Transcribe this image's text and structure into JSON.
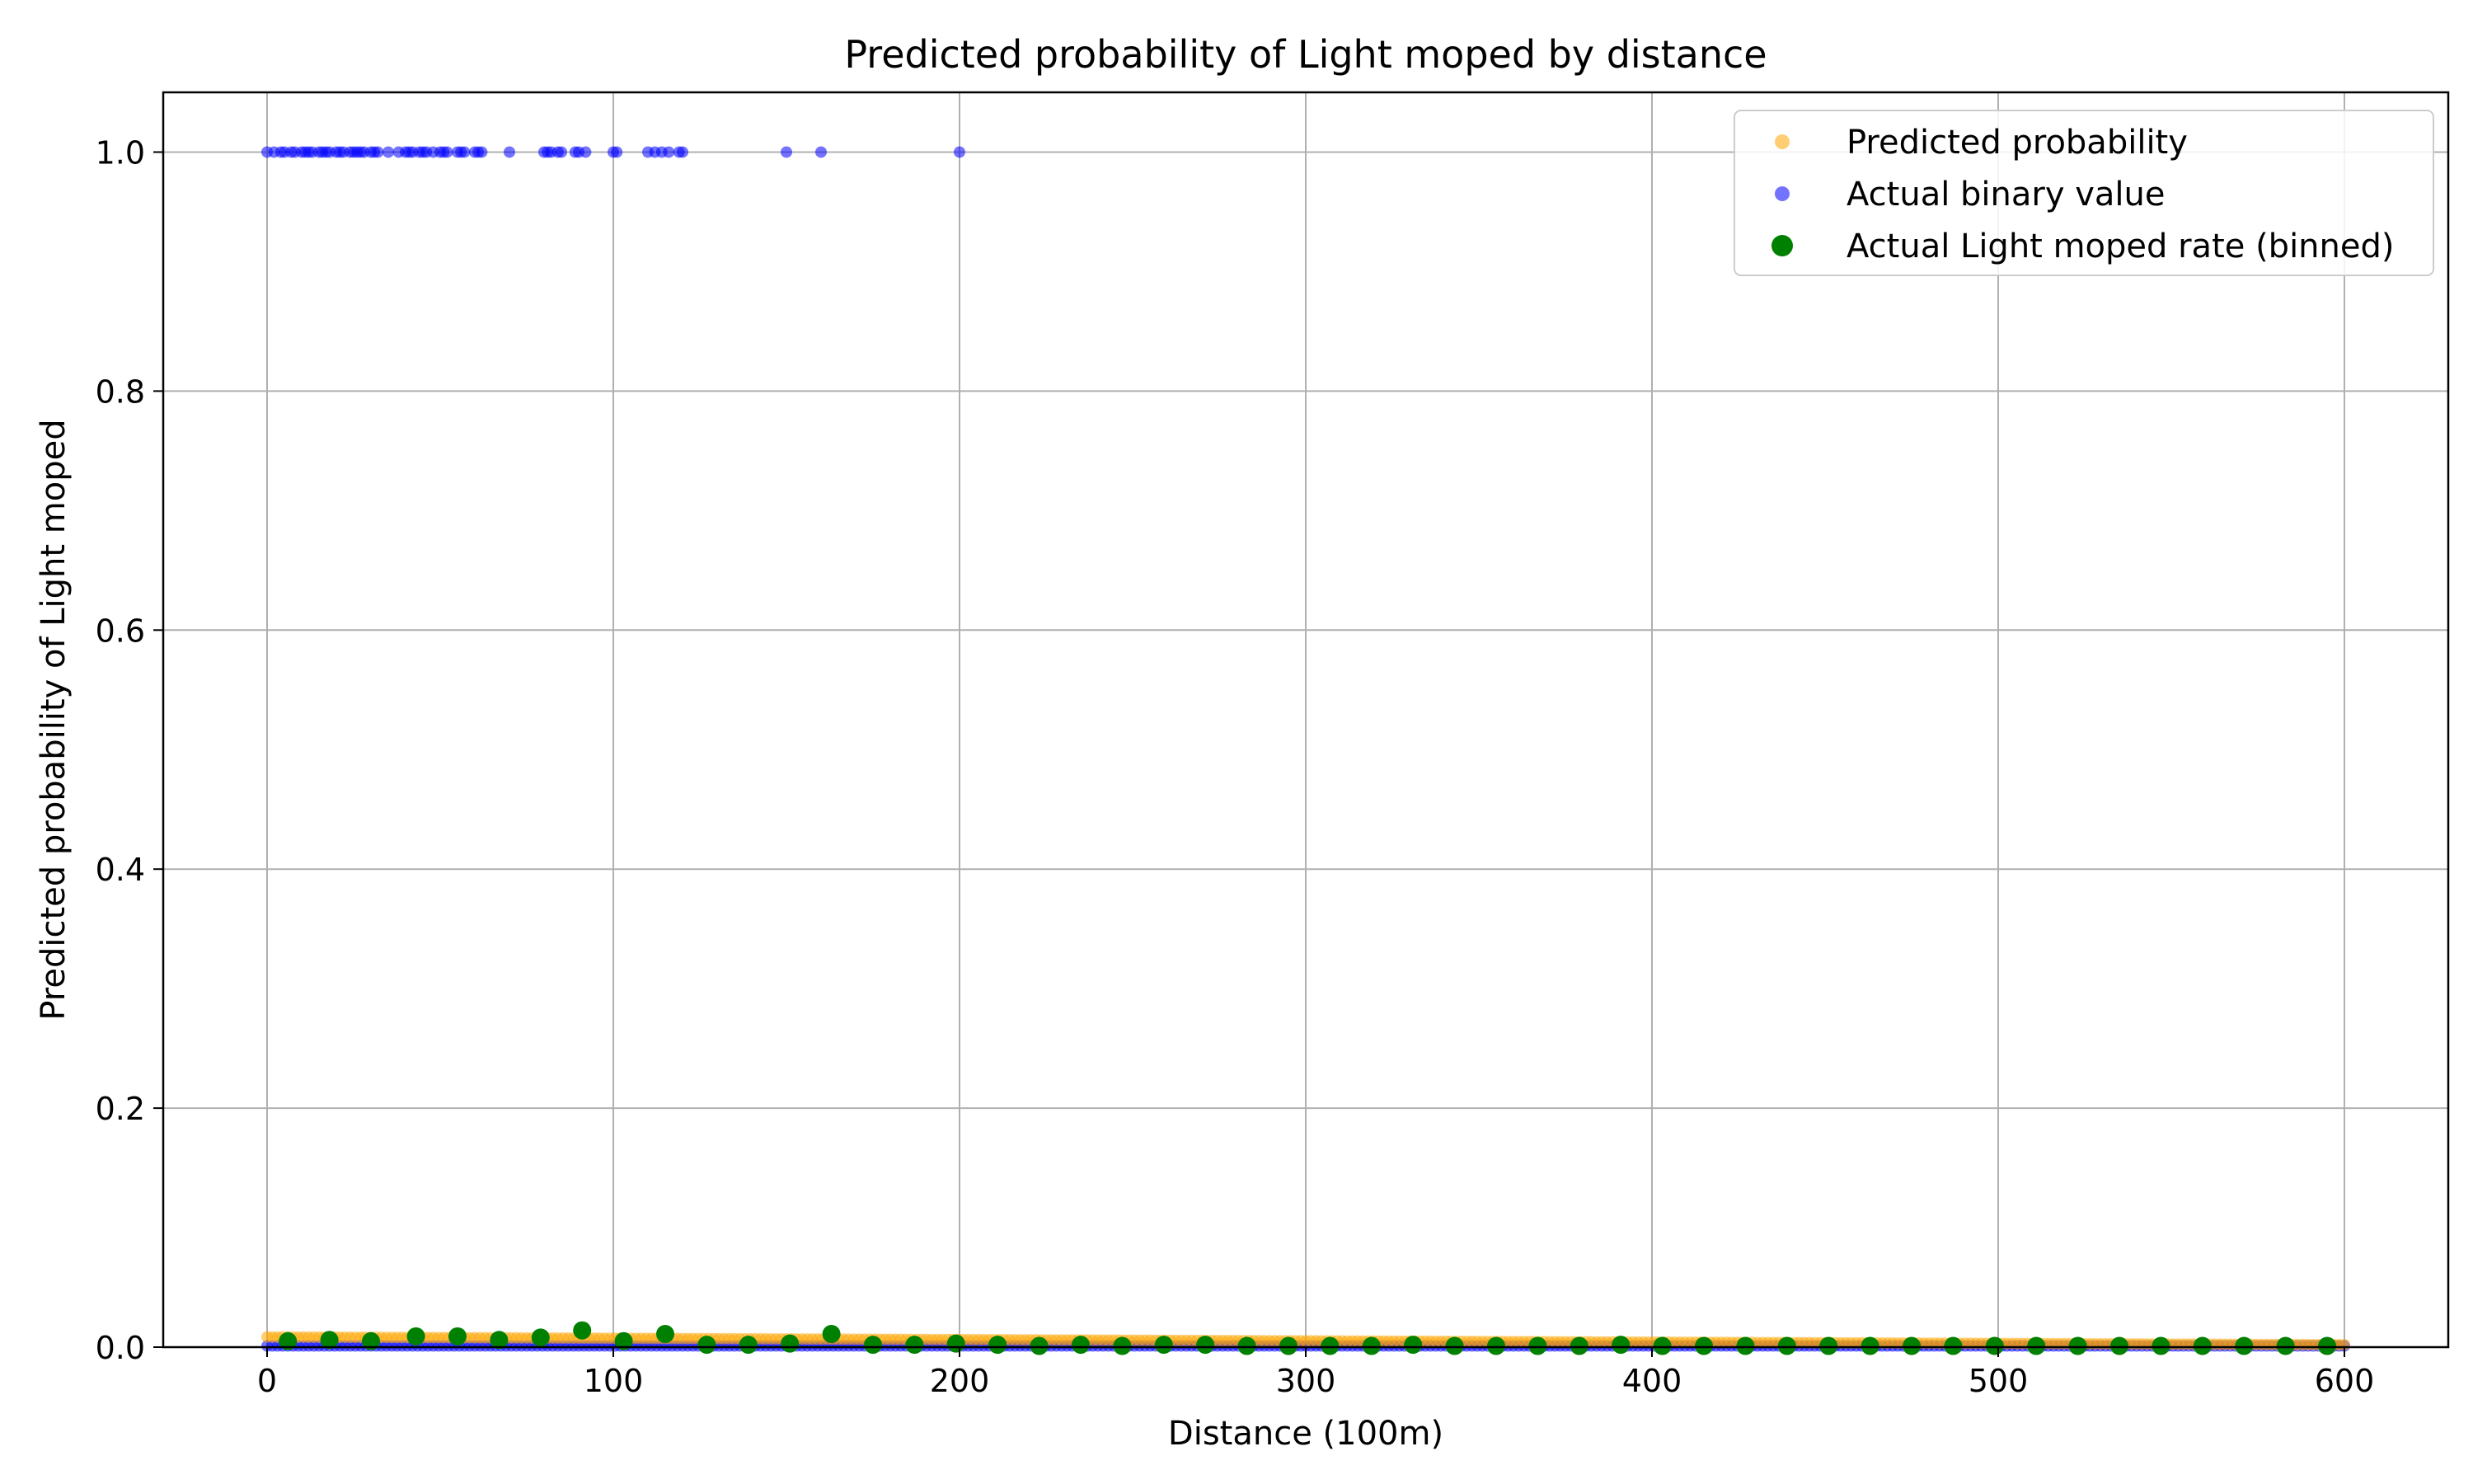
{
  "chart_data": {
    "type": "scatter",
    "title": "Predicted probability of Light moped by distance",
    "xlabel": "Distance (100m)",
    "ylabel": "Predicted probability of Light moped",
    "xlim": [
      -30,
      630
    ],
    "ylim": [
      0.0,
      1.05
    ],
    "xticks": [
      0,
      100,
      200,
      300,
      400,
      500,
      600
    ],
    "xtick_labels": [
      "0",
      "100",
      "200",
      "300",
      "400",
      "500",
      "600"
    ],
    "yticks": [
      0.0,
      0.2,
      0.4,
      0.6,
      0.8,
      1.0
    ],
    "ytick_labels": [
      "0.0",
      "0.2",
      "0.4",
      "0.6",
      "0.8",
      "1.0"
    ],
    "grid": true,
    "legend_position": "top-right",
    "series": [
      {
        "name": "Predicted probability",
        "color": "#ffa500",
        "marker": "small-circle",
        "curve": {
          "x_start": 0,
          "x_end": 600,
          "y_start": 0.0085,
          "y_end": 0.002
        }
      },
      {
        "name": "Actual binary value",
        "color": "#0000ff",
        "marker": "small-circle",
        "ones_x": [
          0,
          2,
          4,
          5,
          7,
          8,
          10,
          11,
          12,
          13,
          15,
          16,
          17,
          18,
          20,
          21,
          22,
          24,
          25,
          26,
          27,
          28,
          30,
          31,
          32,
          35,
          38,
          40,
          41,
          42,
          44,
          45,
          46,
          48,
          50,
          51,
          52,
          55,
          56,
          57,
          60,
          61,
          62,
          70,
          80,
          81,
          82,
          84,
          85,
          89,
          90,
          92,
          100,
          101,
          110,
          112,
          114,
          116,
          119,
          120,
          150,
          160,
          200
        ],
        "zeros_range": [
          0,
          600
        ]
      },
      {
        "name": "Actual Light moped rate (binned)",
        "color": "#008000",
        "marker": "circle",
        "x": [
          6,
          18,
          30,
          43,
          55,
          67,
          79,
          91,
          103,
          115,
          127,
          139,
          151,
          163,
          175,
          187,
          199,
          211,
          223,
          235,
          247,
          259,
          271,
          283,
          295,
          307,
          319,
          331,
          343,
          355,
          367,
          379,
          391,
          403,
          415,
          427,
          439,
          451,
          463,
          475,
          487,
          499,
          511,
          523,
          535,
          547,
          559,
          571,
          583,
          595
        ],
        "y": [
          0.005,
          0.006,
          0.005,
          0.009,
          0.009,
          0.006,
          0.008,
          0.014,
          0.005,
          0.011,
          0.002,
          0.002,
          0.003,
          0.011,
          0.002,
          0.002,
          0.003,
          0.002,
          0.001,
          0.002,
          0.001,
          0.002,
          0.002,
          0.001,
          0.001,
          0.001,
          0.001,
          0.002,
          0.001,
          0.001,
          0.001,
          0.001,
          0.002,
          0.001,
          0.001,
          0.001,
          0.001,
          0.001,
          0.001,
          0.001,
          0.001,
          0.001,
          0.001,
          0.001,
          0.001,
          0.001,
          0.001,
          0.001,
          0.001,
          0.001
        ]
      }
    ]
  }
}
